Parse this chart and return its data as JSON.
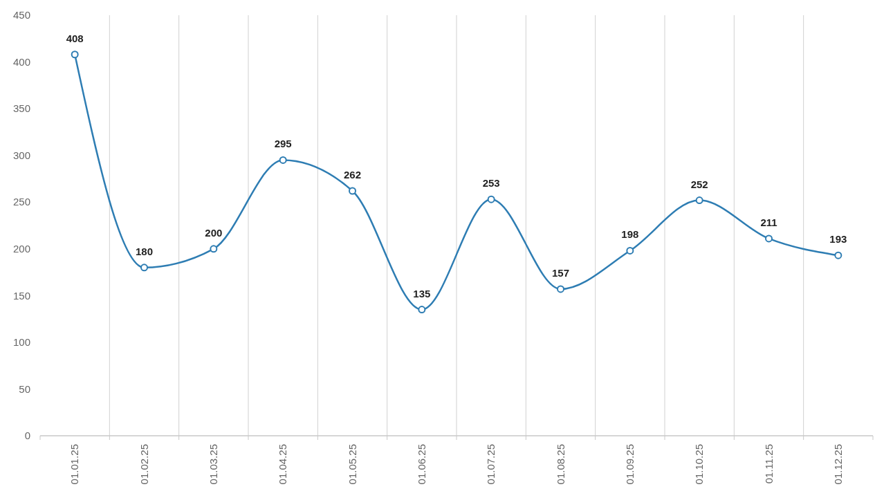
{
  "chart_data": {
    "type": "line",
    "categories": [
      "01.01.25",
      "01.02.25",
      "01.03.25",
      "01.04.25",
      "01.05.25",
      "01.06.25",
      "01.07.25",
      "01.08.25",
      "01.09.25",
      "01.10.25",
      "01.11.25",
      "01.12.25"
    ],
    "series": [
      {
        "color": "#2e7db3",
        "values": [
          408,
          180,
          200,
          295,
          262,
          135,
          253,
          157,
          198,
          252,
          211,
          193
        ]
      }
    ],
    "ylim": [
      0,
      450
    ],
    "yticks": [
      0,
      50,
      100,
      150,
      200,
      250,
      300,
      350,
      400,
      450
    ],
    "grid": "x",
    "marker": "circle",
    "line_style": "solid",
    "data_labels": true
  }
}
